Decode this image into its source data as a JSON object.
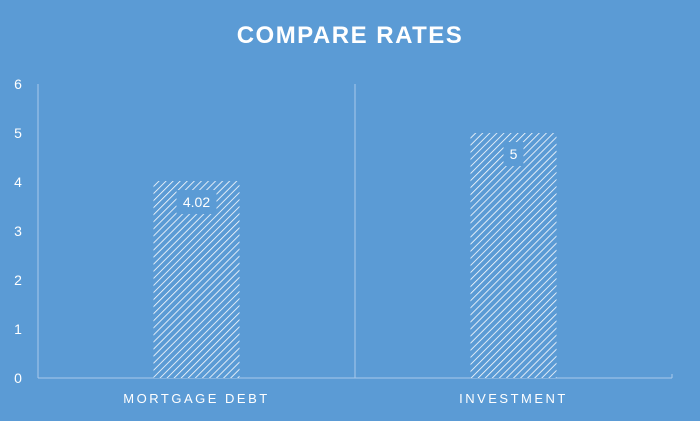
{
  "chart_data": {
    "type": "bar",
    "title": "COMPARE RATES",
    "categories": [
      "MORTGAGE DEBT",
      "INVESTMENT"
    ],
    "values": [
      4.02,
      5
    ],
    "data_labels": [
      "4.02",
      "5"
    ],
    "ylim": [
      0,
      6
    ],
    "yticks": [
      0,
      1,
      2,
      3,
      4,
      5,
      6
    ],
    "grid": false,
    "category_separators": true,
    "bar_fill": "diagonal-hatch",
    "colors": {
      "background": "#5b9bd5",
      "bar_hatch": "#ffffff",
      "axis": "#a9c8ea",
      "label_box": "#5b9bd5",
      "text": "#ffffff"
    }
  }
}
